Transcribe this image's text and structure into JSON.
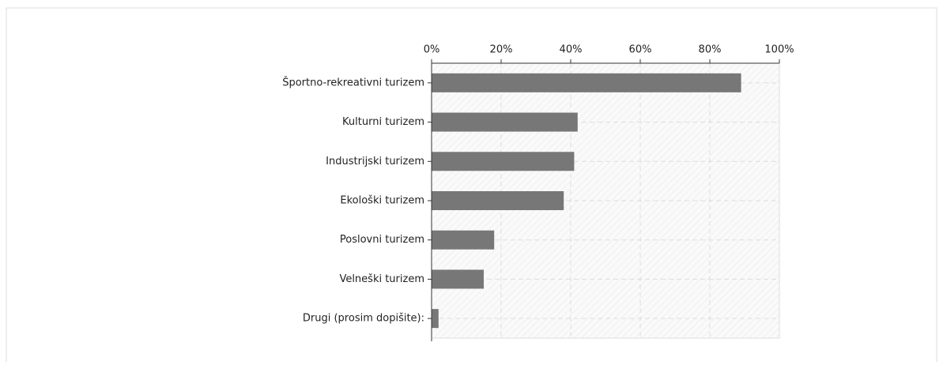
{
  "chart_data": {
    "type": "bar",
    "categories": [
      "Športno-rekreativni turizem",
      "Kulturni turizem",
      "Industrijski turizem",
      "Ekološki turizem",
      "Poslovni turizem",
      "Velneški turizem",
      "Drugi (prosim dopišite):"
    ],
    "values": [
      89,
      42,
      41,
      38,
      18,
      15,
      2
    ],
    "color": "#777777",
    "xlim": [
      0,
      100
    ],
    "xticks": [
      {
        "value": 0,
        "label": "0%"
      },
      {
        "value": 20,
        "label": "20%"
      },
      {
        "value": 40,
        "label": "40%"
      },
      {
        "value": 60,
        "label": "60%"
      },
      {
        "value": 80,
        "label": "80%"
      },
      {
        "value": 100,
        "label": "100%"
      }
    ],
    "grid": true
  }
}
